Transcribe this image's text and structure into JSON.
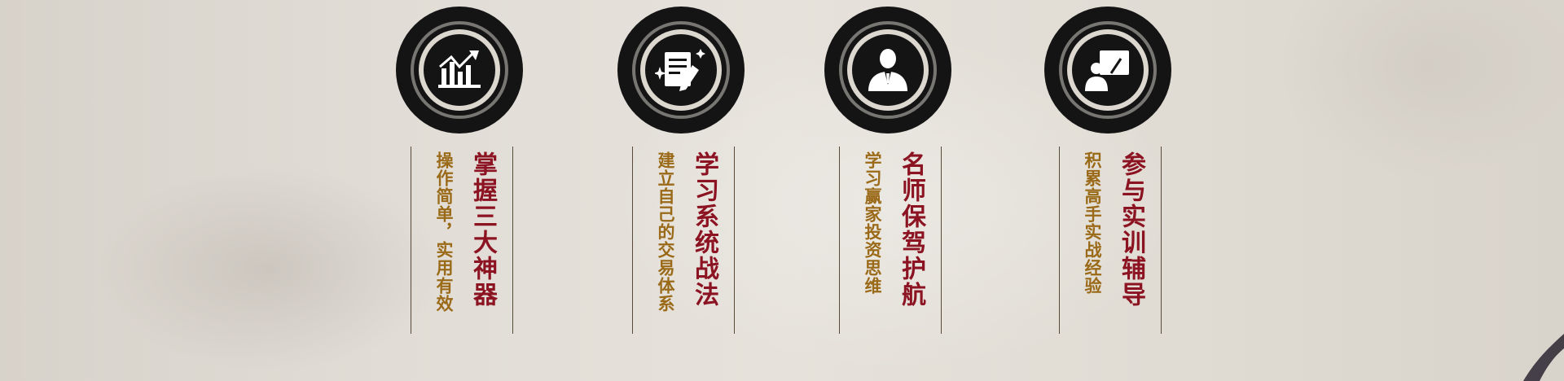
{
  "features": [
    {
      "icon": "growth-chart-icon",
      "title": "掌握三大神器",
      "subtitle": "操作简单，实用有效"
    },
    {
      "icon": "document-pen-icon",
      "title": "学习系统战法",
      "subtitle": "建立自己的交易体系"
    },
    {
      "icon": "mentor-suit-icon",
      "title": "名师保驾护航",
      "subtitle": "学习赢家投资思维"
    },
    {
      "icon": "teacher-board-icon",
      "title": "参与实训辅导",
      "subtitle": "积累高手实战经验"
    }
  ],
  "colors": {
    "title": "#8c1322",
    "subtitle": "#9a6a18",
    "ink": "#141414",
    "ring_inner": "#dcd7cf"
  }
}
